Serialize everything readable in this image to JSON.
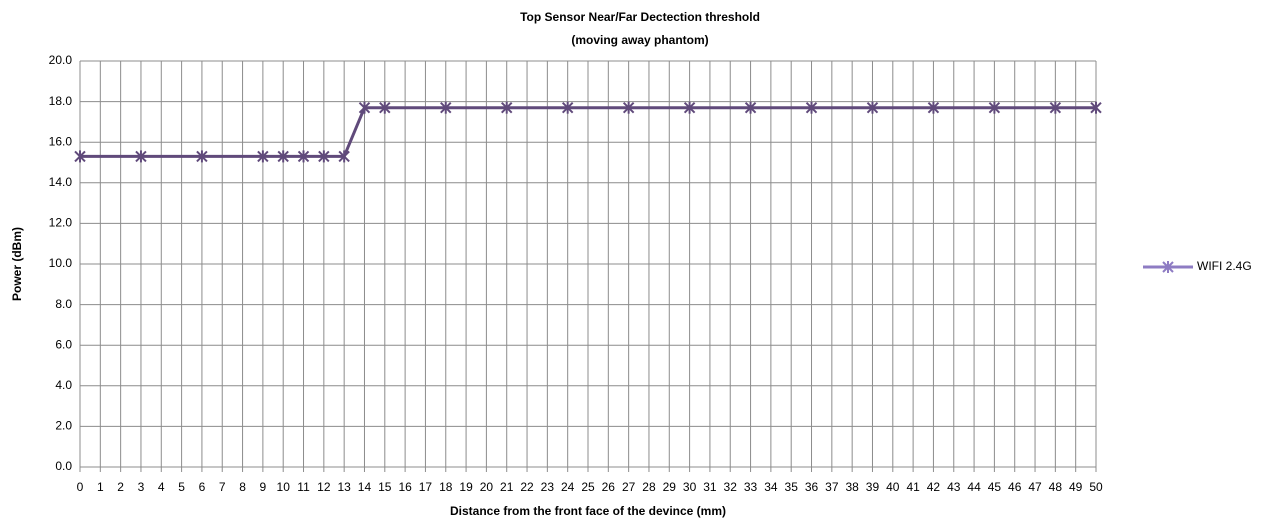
{
  "chart_data": {
    "type": "line",
    "title": "Top Sensor Near/Far Dectection threshold",
    "subtitle": "(moving away phantom)",
    "x_label": "Distance from the front face of the devince (mm)",
    "y_label": "Power (dBm)",
    "x": [
      0,
      3,
      6,
      9,
      10,
      11,
      12,
      13,
      14,
      15,
      18,
      21,
      24,
      27,
      30,
      33,
      36,
      39,
      42,
      45,
      48,
      50
    ],
    "series": [
      {
        "name": "WIFI 2.4G",
        "color": "#604a7b",
        "values": [
          15.3,
          15.3,
          15.3,
          15.3,
          15.3,
          15.3,
          15.3,
          15.3,
          17.7,
          17.7,
          17.7,
          17.7,
          17.7,
          17.7,
          17.7,
          17.7,
          17.7,
          17.7,
          17.7,
          17.7,
          17.7,
          17.7
        ]
      }
    ],
    "xlim": [
      0,
      50
    ],
    "xticks": [
      0,
      1,
      2,
      3,
      4,
      5,
      6,
      7,
      8,
      9,
      10,
      11,
      12,
      13,
      14,
      15,
      16,
      17,
      18,
      19,
      20,
      21,
      22,
      23,
      24,
      25,
      26,
      27,
      28,
      29,
      30,
      31,
      32,
      33,
      34,
      35,
      36,
      37,
      38,
      39,
      40,
      41,
      42,
      43,
      44,
      45,
      46,
      47,
      48,
      49,
      50
    ],
    "ylim": [
      0,
      20
    ],
    "yticks": [
      {
        "value": 0,
        "label": "0.0"
      },
      {
        "value": 2,
        "label": "2.0"
      },
      {
        "value": 4,
        "label": "4.0"
      },
      {
        "value": 6,
        "label": "6.0"
      },
      {
        "value": 8,
        "label": "8.0"
      },
      {
        "value": 10,
        "label": "10.0"
      },
      {
        "value": 12,
        "label": "12.0"
      },
      {
        "value": 14,
        "label": "14.0"
      },
      {
        "value": 16,
        "label": "16.0"
      },
      {
        "value": 18,
        "label": "18.0"
      },
      {
        "value": 20,
        "label": "20.0"
      }
    ],
    "grid": true,
    "legend": "right"
  }
}
